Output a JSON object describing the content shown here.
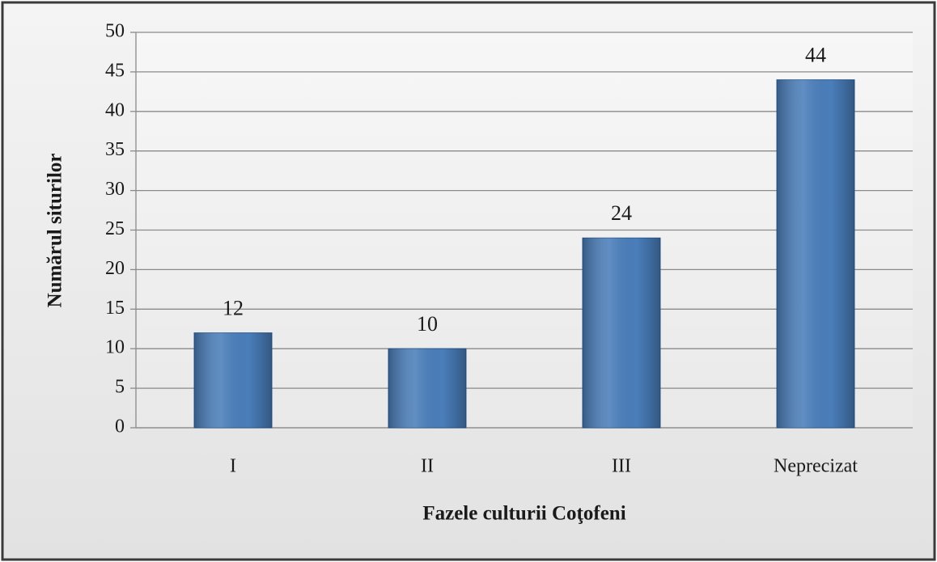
{
  "chart_data": {
    "type": "bar",
    "x_label": "Fazele culturii Coţofeni",
    "y_label": "Numărul siturilor",
    "categories": [
      "I",
      "II",
      "III",
      "Neprecizat"
    ],
    "values": [
      12,
      10,
      24,
      44
    ],
    "color": "#4a7ebb",
    "ylim": [
      0,
      50
    ],
    "yticks": [
      0,
      5,
      10,
      15,
      20,
      25,
      30,
      35,
      40,
      45,
      50
    ],
    "grid": true
  }
}
